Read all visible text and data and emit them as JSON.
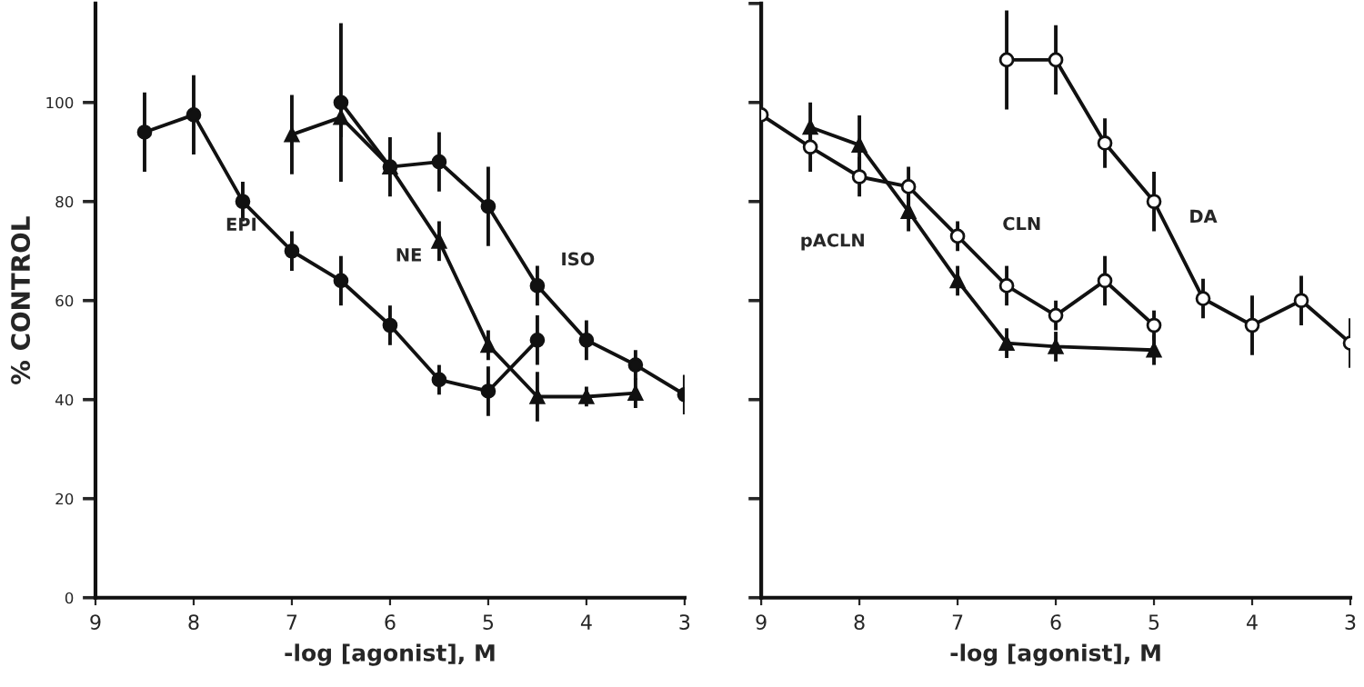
{
  "chart_data": [
    {
      "type": "line",
      "ylabel": "% CONTROL",
      "xlabel": "-log [agonist], M",
      "xlim": [
        9,
        3
      ],
      "xticks": [
        9,
        8,
        7,
        6,
        5,
        4,
        3
      ],
      "ylim": [
        0,
        120
      ],
      "yticks": [
        0,
        20,
        40,
        60,
        80,
        100
      ],
      "grid": false,
      "legend": false,
      "series": [
        {
          "name": "EPI",
          "color": "#111111",
          "marker": "circle",
          "x": [
            8.5,
            8,
            7.5,
            7,
            6.5,
            6,
            5.5,
            5,
            4.5
          ],
          "values": [
            94,
            97.5,
            80,
            70,
            64,
            55,
            44,
            41.7,
            52
          ],
          "errors": [
            8,
            8,
            4,
            4,
            5,
            4,
            3,
            5,
            5
          ]
        },
        {
          "name": "NE",
          "color": "#111111",
          "marker": "triangle",
          "x": [
            7,
            6.5,
            6,
            5.5,
            5,
            4.5,
            4,
            3.5
          ],
          "values": [
            93.5,
            97,
            87,
            72,
            51,
            40.6,
            40.6,
            41.3
          ],
          "errors": [
            8,
            4,
            6,
            4,
            3,
            5,
            2,
            3
          ]
        },
        {
          "name": "ISO",
          "color": "#111111",
          "marker": "circle",
          "x": [
            6.5,
            6,
            5.5,
            5,
            4.5,
            4,
            3.5,
            3
          ],
          "values": [
            100,
            87,
            88,
            79,
            63,
            52,
            47,
            41
          ],
          "errors": [
            16,
            null,
            6,
            8,
            4,
            4,
            3,
            4
          ]
        }
      ]
    },
    {
      "type": "line",
      "xlabel": "-log [agonist], M",
      "xlim": [
        9,
        3
      ],
      "xticks": [
        9,
        8,
        7,
        6,
        5,
        4,
        3
      ],
      "ylim": [
        0,
        120
      ],
      "yticks": [
        {
          "value": 0,
          "label": null
        },
        {
          "value": 20,
          "label": null
        },
        {
          "value": 40,
          "label": null
        },
        {
          "value": 60,
          "label": null
        },
        {
          "value": 80,
          "label": null
        },
        {
          "value": 100,
          "label": null
        },
        {
          "value": 120,
          "label": null
        }
      ],
      "tick_labels": "x",
      "grid": false,
      "legend": false,
      "series": [
        {
          "name": "pACLN",
          "color": "#111111",
          "marker": "triangle",
          "x": [
            8.5,
            8,
            7.5,
            7,
            6.5,
            6,
            5
          ],
          "values": [
            95,
            91.4,
            78,
            64,
            51.4,
            50.7,
            50
          ],
          "errors": [
            5,
            6,
            4,
            3,
            3,
            3,
            3
          ]
        },
        {
          "name": "CLN",
          "color": "#111111",
          "marker": "open circle",
          "x": [
            9,
            8.5,
            8,
            7.5,
            7,
            6.5,
            6,
            5.5,
            5
          ],
          "values": [
            97.5,
            91,
            85,
            83,
            73,
            63,
            57,
            64,
            55
          ],
          "errors": [
            null,
            5,
            4,
            4,
            3,
            4,
            3,
            5,
            3
          ]
        },
        {
          "name": "DA",
          "color": "#111111",
          "marker": "open circle",
          "x": [
            6.5,
            6,
            5.5,
            5,
            4.5,
            4,
            3.5,
            3
          ],
          "values": [
            108.6,
            108.6,
            91.8,
            80,
            60.4,
            55,
            60,
            51.4
          ],
          "errors": [
            10,
            7,
            5,
            6,
            4,
            6,
            5,
            5
          ]
        }
      ]
    }
  ]
}
